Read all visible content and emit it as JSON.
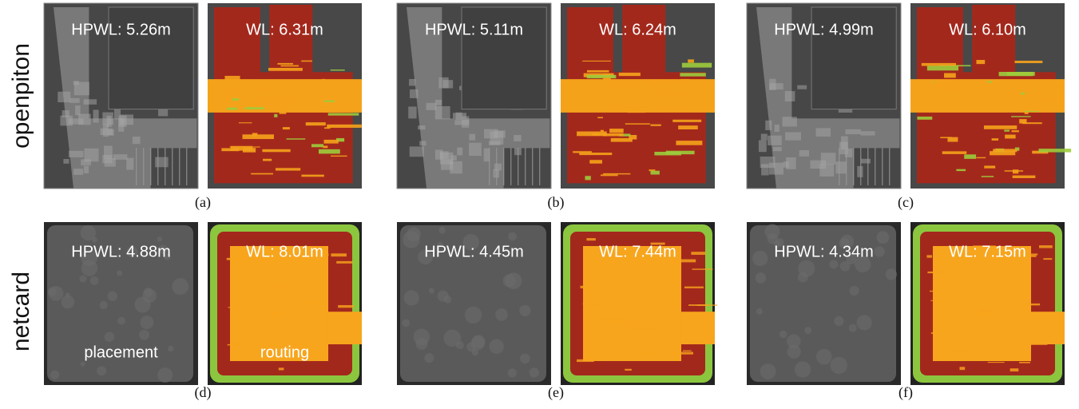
{
  "rows": [
    {
      "label": "openpiton",
      "panels": [
        {
          "hpwl": "HPWL: 5.26m",
          "wl": "WL: 6.31m",
          "caption": "(a)"
        },
        {
          "hpwl": "HPWL: 5.11m",
          "wl": "WL: 6.24m",
          "caption": "(b)"
        },
        {
          "hpwl": "HPWL: 4.99m",
          "wl": "WL: 6.10m",
          "caption": "(c)"
        }
      ]
    },
    {
      "label": "netcard",
      "panels": [
        {
          "hpwl": "HPWL: 4.88m",
          "wl": "WL: 8.01m",
          "caption": "(d)"
        },
        {
          "hpwl": "HPWL: 4.45m",
          "wl": "WL: 7.44m",
          "caption": "(e)"
        },
        {
          "hpwl": "HPWL: 4.34m",
          "wl": "WL: 7.15m",
          "caption": "(f)"
        }
      ]
    }
  ],
  "annotations": {
    "placement": "placement",
    "routing": "routing"
  }
}
